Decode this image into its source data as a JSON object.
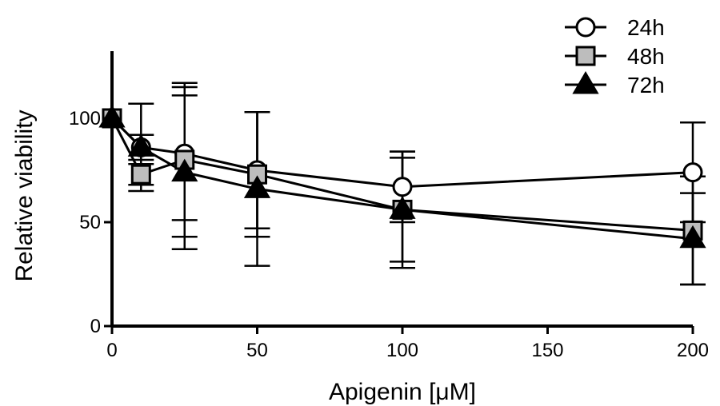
{
  "chart_data": {
    "type": "line",
    "xlabel": "Apigenin [μM]",
    "ylabel": "Relative viability",
    "x_ticks": [
      0,
      50,
      100,
      150,
      200
    ],
    "y_ticks": [
      0,
      50,
      100
    ],
    "xlim": [
      0,
      200
    ],
    "ylim": [
      0,
      130
    ],
    "legend_position": "top-right",
    "grid": false,
    "x": [
      0,
      10,
      25,
      50,
      100,
      200
    ],
    "series": [
      {
        "name": "24h",
        "marker": "circle",
        "fill": "#ffffff",
        "values": [
          100,
          86,
          83,
          75,
          67,
          74
        ],
        "error": [
          0,
          6,
          32,
          28,
          17,
          24
        ]
      },
      {
        "name": "48h",
        "marker": "square",
        "fill": "#bdbdbd",
        "values": [
          100,
          73,
          80,
          73,
          56,
          46
        ],
        "error": [
          0,
          5,
          37,
          30,
          28,
          26
        ]
      },
      {
        "name": "72h",
        "marker": "triangle",
        "fill": "#000000",
        "values": [
          100,
          86,
          74,
          66,
          56,
          42
        ],
        "error": [
          0,
          21,
          37,
          37,
          25,
          22
        ]
      }
    ]
  }
}
